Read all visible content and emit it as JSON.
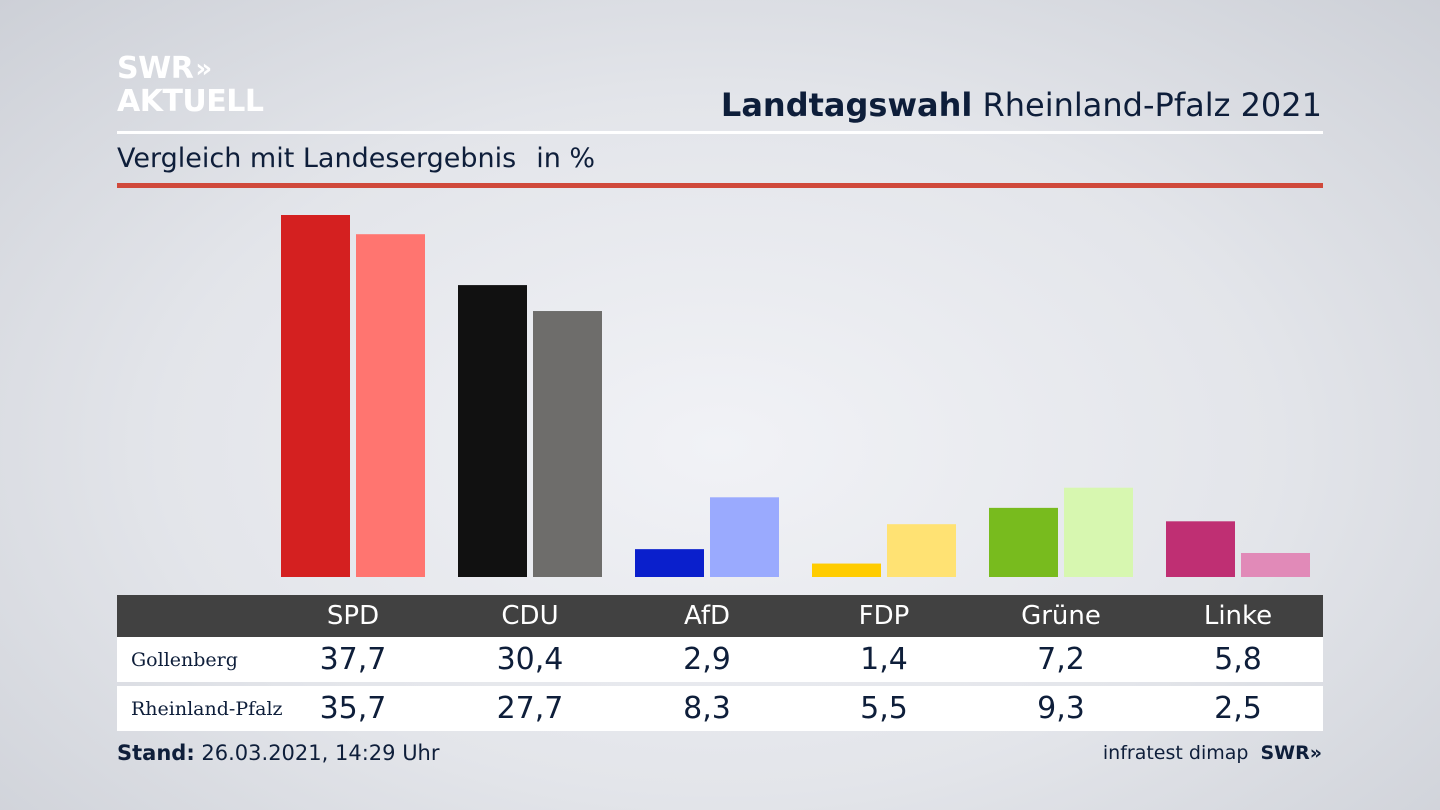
{
  "brand": {
    "line1": "SWR",
    "line2": "AKTUELL",
    "chevrons": "»"
  },
  "header": {
    "title_bold": "Landtagswahl",
    "title_rest": "Rheinland-Pfalz 2021"
  },
  "subheader": {
    "text": "Vergleich mit Landesergebnis",
    "unit": "in %"
  },
  "colors": {
    "accent_rule": "#d0493b",
    "table_header_bg": "#414141"
  },
  "chart_data": {
    "type": "bar",
    "categories": [
      "SPD",
      "CDU",
      "AfD",
      "FDP",
      "Grüne",
      "Linke"
    ],
    "series": [
      {
        "name": "Gollenberg",
        "values": [
          37.7,
          30.4,
          2.9,
          1.4,
          7.2,
          5.8
        ],
        "display": [
          "37,7",
          "30,4",
          "2,9",
          "1,4",
          "7,2",
          "5,8"
        ],
        "colors": [
          "#d42020",
          "#111111",
          "#0a1fcc",
          "#ffcc00",
          "#78bb1e",
          "#bf2f73"
        ]
      },
      {
        "name": "Rheinland-Pfalz",
        "values": [
          35.7,
          27.7,
          8.3,
          5.5,
          9.3,
          2.5
        ],
        "display": [
          "35,7",
          "27,7",
          "8,3",
          "5,5",
          "9,3",
          "2,5"
        ],
        "colors": [
          "#ff7570",
          "#6e6d6b",
          "#9aaafe",
          "#ffe273",
          "#d7f7b0",
          "#e18ab8"
        ]
      }
    ],
    "ylim": [
      0,
      37.7
    ],
    "xlabel": "",
    "ylabel": "",
    "grid": false,
    "legend": "table-below"
  },
  "footer": {
    "stand_label": "Stand:",
    "stand_value": "26.03.2021, 14:29 Uhr",
    "source": "infratest dimap",
    "brand": "SWR"
  }
}
